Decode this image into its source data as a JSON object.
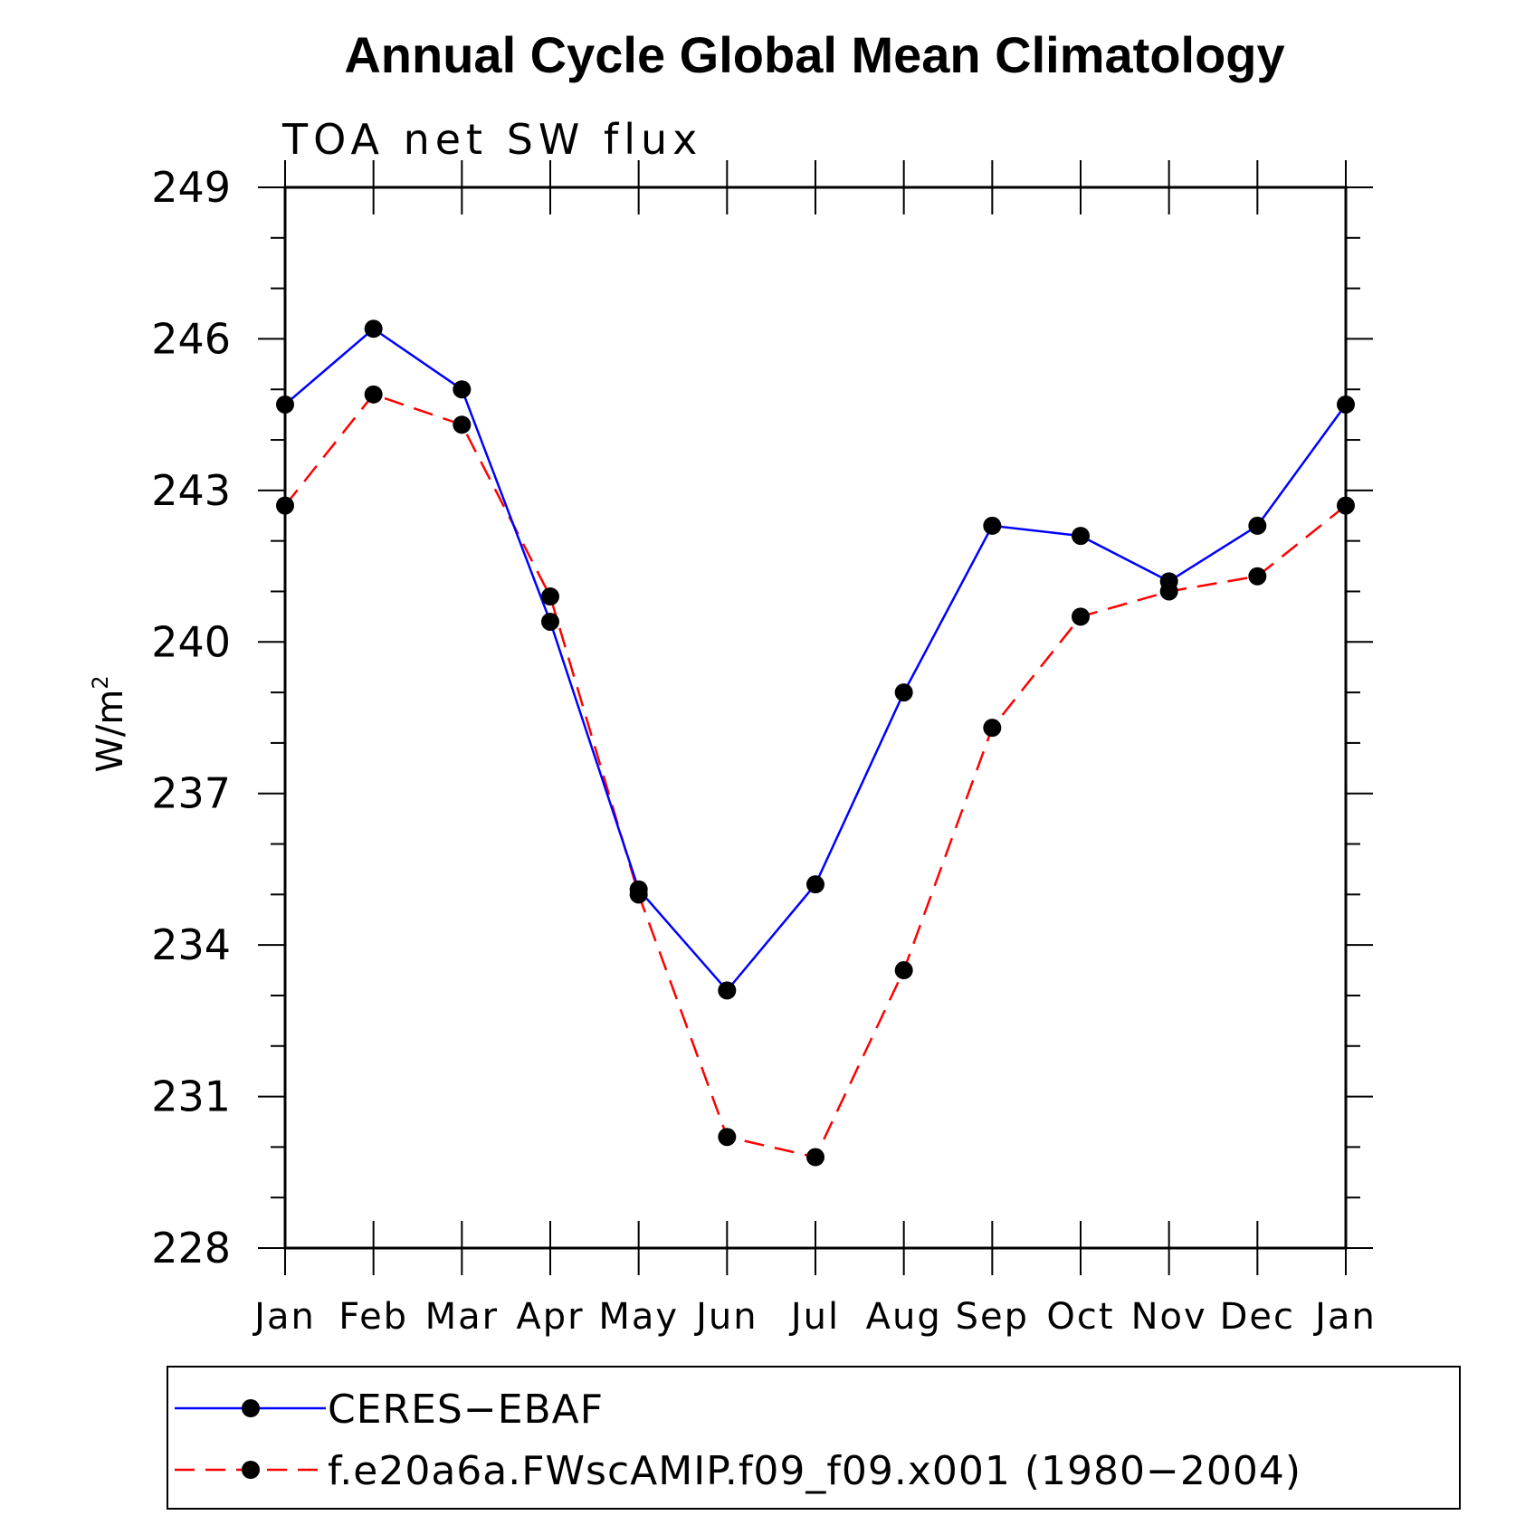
{
  "chart_data": {
    "type": "line",
    "title": "Annual Cycle Global Mean Climatology",
    "subtitle": "TOA net SW flux",
    "ylabel_base": "W/m",
    "ylabel_sup": "2",
    "xlabel": "",
    "categories": [
      "Jan",
      "Feb",
      "Mar",
      "Apr",
      "May",
      "Jun",
      "Jul",
      "Aug",
      "Sep",
      "Oct",
      "Nov",
      "Dec",
      "Jan"
    ],
    "ylim": [
      228,
      249
    ],
    "yticks_major": [
      228,
      231,
      234,
      237,
      240,
      243,
      246,
      249
    ],
    "yticks_minor_step": 1,
    "grid": false,
    "legend_position": "bottom",
    "series": [
      {
        "name": "CERES−EBAF",
        "color": "#0000ff",
        "dash": "solid",
        "marker": "filled-circle",
        "values": [
          244.7,
          246.2,
          245.0,
          240.4,
          235.1,
          233.1,
          235.2,
          239.0,
          242.3,
          242.1,
          241.2,
          242.3,
          244.7
        ]
      },
      {
        "name": "f.e20a6a.FWscAMIP.f09_f09.x001 (1980−2004)",
        "color": "#ff0000",
        "dash": "dashed",
        "marker": "filled-circle",
        "values": [
          242.7,
          244.9,
          244.3,
          240.9,
          235.0,
          230.2,
          229.8,
          233.5,
          238.3,
          240.5,
          241.0,
          241.3,
          242.7
        ]
      }
    ]
  }
}
